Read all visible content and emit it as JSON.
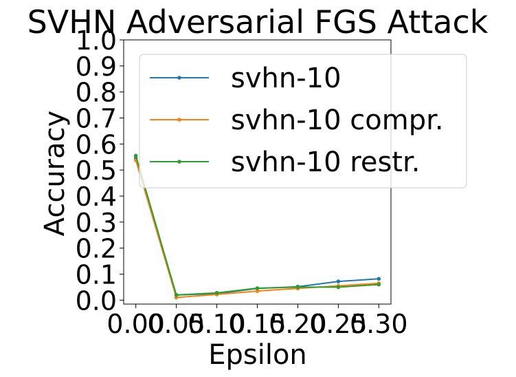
{
  "chart_data": {
    "type": "line",
    "title": "SVHN Adversarial FGS Attack",
    "xlabel": "Epsilon",
    "ylabel": "Accuracy",
    "x": [
      0.0,
      0.05,
      0.1,
      0.15,
      0.2,
      0.25,
      0.3
    ],
    "x_tick_labels": [
      "0.00",
      "0.05",
      "0.10",
      "0.15",
      "0.20",
      "0.25",
      "0.30"
    ],
    "y_tick_values": [
      0.0,
      0.1,
      0.2,
      0.3,
      0.4,
      0.5,
      0.6,
      0.7,
      0.8,
      0.9,
      1.0
    ],
    "y_tick_labels": [
      "0.0",
      "0.1",
      "0.2",
      "0.3",
      "0.4",
      "0.5",
      "0.6",
      "0.7",
      "0.8",
      "0.9",
      "1.0"
    ],
    "xlim": [
      -0.015,
      0.315
    ],
    "ylim": [
      -0.015,
      1.0
    ],
    "grid": false,
    "legend_position": "top-right",
    "series": [
      {
        "name": "svhn-10",
        "color": "#1f77b4",
        "values": [
          0.545,
          0.02,
          0.025,
          0.045,
          0.052,
          0.072,
          0.082
        ]
      },
      {
        "name": "svhn-10 compr.",
        "color": "#ff7f0e",
        "values": [
          0.538,
          0.01,
          0.022,
          0.035,
          0.045,
          0.055,
          0.065
        ]
      },
      {
        "name": "svhn-10 restr.",
        "color": "#2ca02c",
        "values": [
          0.555,
          0.02,
          0.028,
          0.046,
          0.05,
          0.05,
          0.06
        ]
      }
    ]
  }
}
